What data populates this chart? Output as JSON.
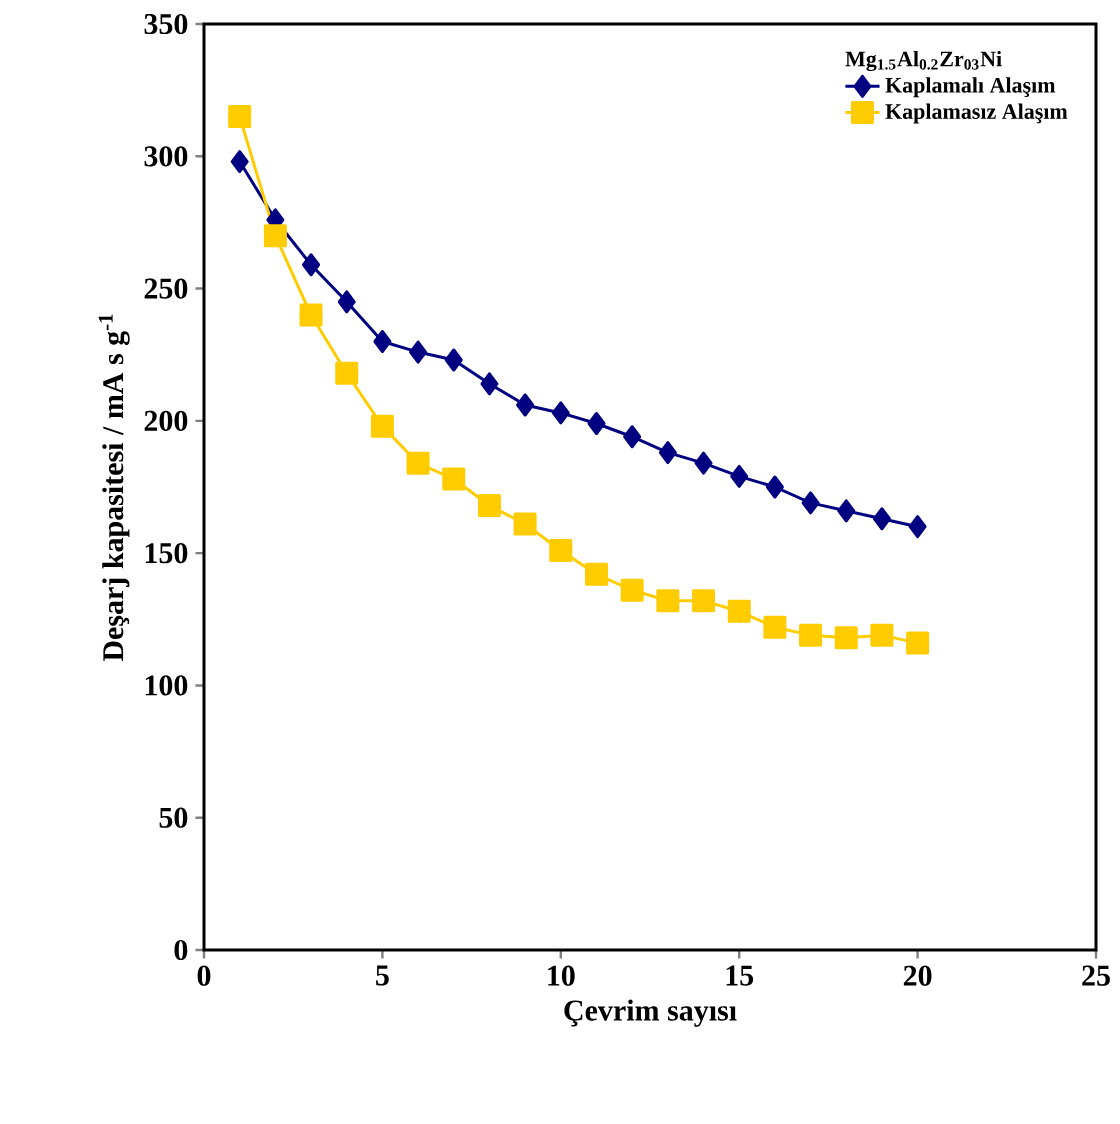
{
  "chart_data": {
    "type": "line",
    "xlabel": "Çevrim sayısı",
    "ylabel": "Deşarj kapasitesi / mA s g$^{-1}$",
    "legend_title": "Mg$_{1.5}$Al$_{0.2}$Zr$_{03}$Ni",
    "legend": "top right",
    "grid": false,
    "x": [
      1,
      2,
      3,
      4,
      5,
      6,
      7,
      8,
      9,
      10,
      11,
      12,
      13,
      14,
      15,
      16,
      17,
      18,
      19,
      20
    ],
    "xlim": [
      0,
      25
    ],
    "xticks": [
      0,
      5,
      10,
      15,
      20,
      25
    ],
    "ylim": [
      0,
      350
    ],
    "yticks": [
      0,
      50,
      100,
      150,
      200,
      250,
      300,
      350
    ],
    "series": [
      {
        "name": "Kaplamalı Alaşım",
        "color": "#000080",
        "marker": "diamond",
        "values": [
          298,
          276,
          259,
          245,
          230,
          226,
          223,
          214,
          206,
          203,
          199,
          194,
          188,
          184,
          179,
          175,
          169,
          166,
          163,
          160
        ]
      },
      {
        "name": "Kaplamasız Alaşım",
        "color": "#ffcc00",
        "marker": "square",
        "values": [
          315,
          270,
          240,
          218,
          198,
          184,
          178,
          168,
          161,
          151,
          142,
          136,
          132,
          132,
          128,
          122,
          119,
          118,
          119,
          116
        ]
      }
    ]
  }
}
